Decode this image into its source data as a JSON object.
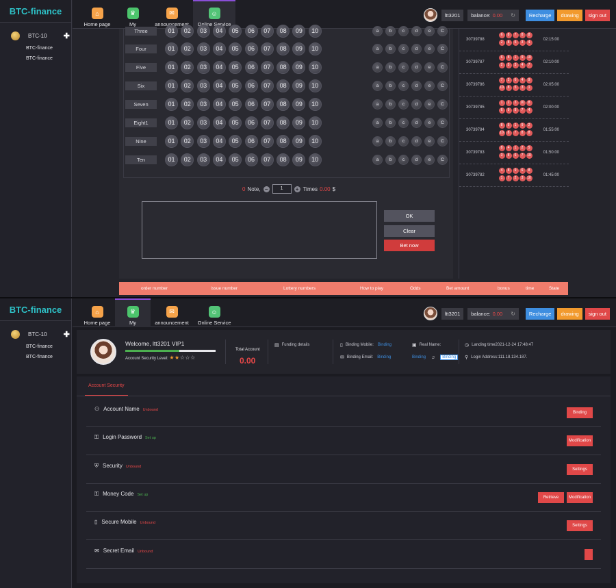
{
  "brand": "BTC-finance",
  "sidebar": {
    "group_label": "BTC-10",
    "items": [
      {
        "label": "BTC-finance"
      },
      {
        "label": "BTC-finance"
      }
    ]
  },
  "nav": {
    "items": [
      {
        "label": "Home page",
        "icon": "home-icon"
      },
      {
        "label": "My",
        "icon": "user-icon"
      },
      {
        "label": "announcement",
        "icon": "mail-icon"
      },
      {
        "label": "Online Service",
        "icon": "support-icon"
      }
    ]
  },
  "topbar": {
    "username": "ltt3201",
    "balance_label": "balance:",
    "balance_value": "0.00",
    "recharge": "Recharge",
    "drawing": "drawing",
    "signout": "sign out"
  },
  "lottery": {
    "rows": [
      "Three",
      "Four",
      "Five",
      "Six",
      "Seven",
      "Eight1",
      "Nine",
      "Ten"
    ],
    "numbers": [
      "01",
      "02",
      "03",
      "04",
      "05",
      "06",
      "07",
      "08",
      "09",
      "10"
    ],
    "sides": [
      "a",
      "b",
      "c",
      "d",
      "e",
      "C"
    ],
    "note_count": "0",
    "note_label": "Note,",
    "times_value": "1",
    "times_label": "Times",
    "amount": "0.00",
    "currency": "$",
    "ok": "OK",
    "clear": "Clear",
    "bet_now": "Bet now"
  },
  "history": [
    {
      "issue": "30739788",
      "time": "02:15:00",
      "balls": [
        "6",
        "8",
        "7",
        "8",
        "8",
        "2",
        "8",
        "5",
        "3",
        "4"
      ]
    },
    {
      "issue": "30739787",
      "time": "02:10:00",
      "balls": [
        "6",
        "8",
        "1",
        "9",
        "10",
        "2",
        "5",
        "3",
        "4",
        "7"
      ]
    },
    {
      "issue": "30739786",
      "time": "02:05:00",
      "balls": [
        "7",
        "2",
        "6",
        "4",
        "9",
        "10",
        "8",
        "5",
        "3",
        "1"
      ]
    },
    {
      "issue": "30739785",
      "time": "02:00:00",
      "balls": [
        "1",
        "2",
        "3",
        "10",
        "8",
        "6",
        "9",
        "8",
        "7",
        "4"
      ]
    },
    {
      "issue": "30739784",
      "time": "01:55:00",
      "balls": [
        "8",
        "5",
        "1",
        "9",
        "2",
        "10",
        "8",
        "7",
        "8",
        "8"
      ]
    },
    {
      "issue": "30739783",
      "time": "01:50:00",
      "balls": [
        "8",
        "4",
        "1",
        "2",
        "5",
        "3",
        "8",
        "6",
        "7",
        "10"
      ]
    },
    {
      "issue": "30739782",
      "time": "01:45:00",
      "balls": [
        "4",
        "8",
        "9",
        "6",
        "8",
        "1",
        "7",
        "2",
        "3",
        "10"
      ]
    }
  ],
  "orders_header": [
    "order number",
    "issue number",
    "Lottery numbers",
    "How to play",
    "Odds",
    "Bet amount",
    "bonus",
    "time",
    "State"
  ],
  "account": {
    "welcome": "Welcome, ltt3201 VIP1",
    "security_level_label": "Account Security Level:",
    "security_progress": 0.6,
    "stars_filled": "★★",
    "stars_empty": "☆☆☆",
    "total_label": "Total Account",
    "total_value": "0.00",
    "funding": "Funding details",
    "binding_mobile_label": "Binding Mobile:",
    "binding_mobile_value": "Binding",
    "binding_email_label": "Binding Email:",
    "binding_email_value": "Binding",
    "real_name_label": "Real Name:",
    "real_name_value": "Binding",
    "qq_value": "Binding",
    "landing_time": "Landing time2021-12-24 17:48:47",
    "login_address": "Login Address:111.18.134.187."
  },
  "security": {
    "tab": "Account Security",
    "rows": [
      {
        "title": "Account Name",
        "status": "Unbound",
        "status_type": "unbound",
        "buttons": [
          "Binding"
        ],
        "icon": "user-shield-icon"
      },
      {
        "title": "Login Password",
        "status": "Set up",
        "status_type": "setup",
        "buttons": [
          "Modification"
        ],
        "icon": "lock-icon"
      },
      {
        "title": "Security",
        "status": "Unbound",
        "status_type": "unbound",
        "buttons": [
          "Settings"
        ],
        "icon": "shield-icon"
      },
      {
        "title": "Money Code",
        "status": "Set up",
        "status_type": "setup",
        "buttons": [
          "Retrieve",
          "Modification"
        ],
        "icon": "lock-icon"
      },
      {
        "title": "Secure Mobile",
        "status": "Unbound",
        "status_type": "unbound",
        "buttons": [
          "Settings"
        ],
        "icon": "mobile-icon"
      },
      {
        "title": "Secret Email",
        "status": "Unbound",
        "status_type": "unbound",
        "buttons": [],
        "icon": "email-icon"
      }
    ]
  }
}
